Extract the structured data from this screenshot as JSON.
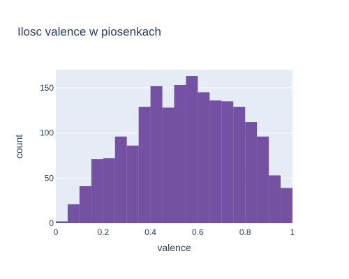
{
  "chart_data": {
    "type": "bar",
    "title": "Ilosc valence w piosenkach",
    "xlabel": "valence",
    "ylabel": "count",
    "bin_edges": [
      0,
      0.05,
      0.1,
      0.15,
      0.2,
      0.25,
      0.3,
      0.35,
      0.4,
      0.45,
      0.5,
      0.55,
      0.6,
      0.65,
      0.7,
      0.75,
      0.8,
      0.85,
      0.9,
      0.95,
      1.0
    ],
    "values": [
      2,
      21,
      41,
      71,
      72,
      96,
      86,
      129,
      152,
      128,
      153,
      163,
      145,
      136,
      135,
      129,
      112,
      96,
      53,
      39
    ],
    "xlim": [
      0,
      1
    ],
    "ylim": [
      0,
      170
    ],
    "x_ticks": [
      {
        "value": 0,
        "label": "0"
      },
      {
        "value": 0.2,
        "label": "0.2"
      },
      {
        "value": 0.4,
        "label": "0.4"
      },
      {
        "value": 0.6,
        "label": "0.6"
      },
      {
        "value": 0.8,
        "label": "0.8"
      },
      {
        "value": 1,
        "label": "1"
      }
    ],
    "y_ticks": [
      {
        "value": 0,
        "label": "0"
      },
      {
        "value": 50,
        "label": "50"
      },
      {
        "value": 100,
        "label": "100"
      },
      {
        "value": 150,
        "label": "150"
      }
    ],
    "grid": true,
    "bar_color": "#7551a3",
    "plot_background": "#e5ecf6",
    "grid_color": "#ffffff",
    "text_color": "#2a3f5f"
  }
}
